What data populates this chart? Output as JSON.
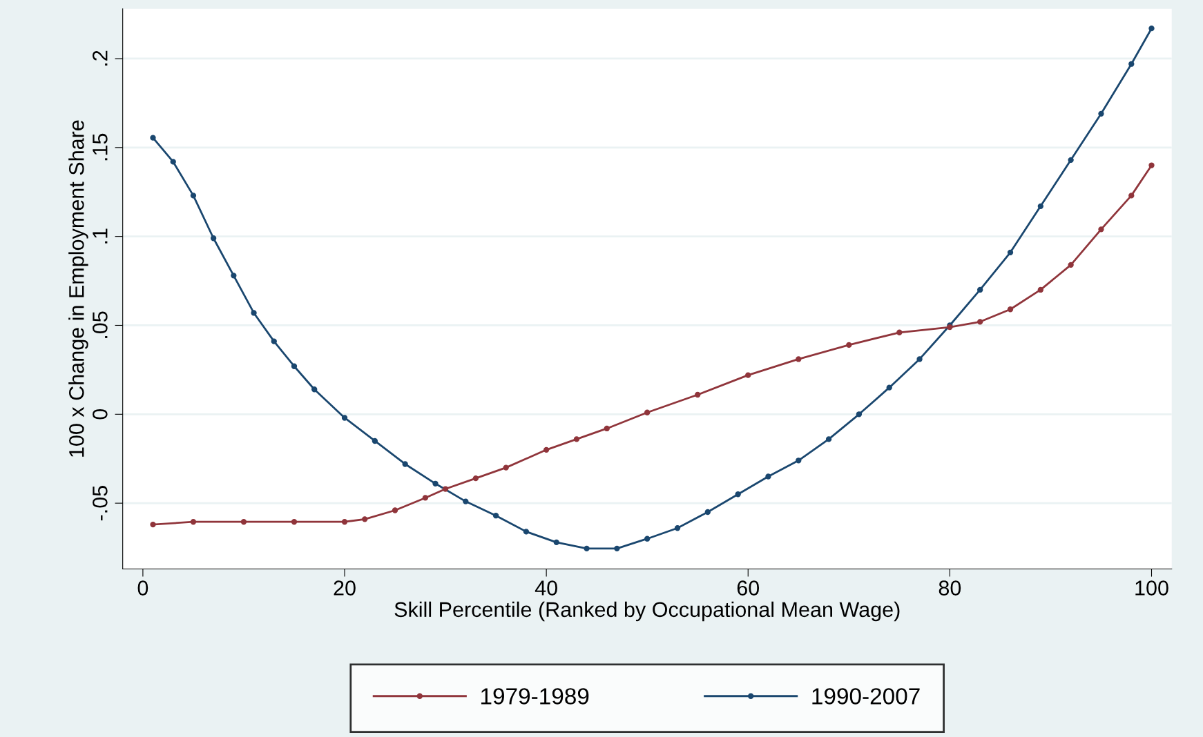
{
  "chart_data": {
    "type": "line",
    "xlabel": "Skill Percentile (Ranked by Occupational Mean Wage)",
    "ylabel": "100 x Change in Employment Share",
    "xlim": [
      -2,
      102
    ],
    "ylim": [
      -0.087,
      0.228
    ],
    "xticks": [
      0,
      20,
      40,
      60,
      80,
      100
    ],
    "yticks": [
      {
        "value": -0.05,
        "label": "-.05"
      },
      0,
      {
        "value": 0.05,
        "label": ".05"
      },
      {
        "value": 0.1,
        "label": ".1"
      },
      {
        "value": 0.15,
        "label": ".15"
      },
      {
        "value": 0.2,
        "label": ".2"
      }
    ],
    "grid": "y",
    "legend": "bottom",
    "marker": "circle",
    "line_style": "solid",
    "series": [
      {
        "name": "1979-1989",
        "color": "#90353b",
        "x": [
          1,
          5,
          10,
          15,
          20,
          22,
          25,
          28,
          30,
          33,
          36,
          40,
          43,
          46,
          50,
          55,
          60,
          65,
          70,
          75,
          80,
          83,
          86,
          89,
          92,
          95,
          98,
          100
        ],
        "values": [
          -0.062,
          -0.0605,
          -0.0605,
          -0.0605,
          -0.0605,
          -0.059,
          -0.054,
          -0.047,
          -0.042,
          -0.036,
          -0.03,
          -0.02,
          -0.014,
          -0.008,
          0.001,
          0.011,
          0.022,
          0.031,
          0.039,
          0.046,
          0.049,
          0.052,
          0.059,
          0.07,
          0.084,
          0.104,
          0.123,
          0.14
        ]
      },
      {
        "name": "1990-2007",
        "color": "#1a476f",
        "x": [
          1,
          3,
          5,
          7,
          9,
          11,
          13,
          15,
          17,
          20,
          23,
          26,
          29,
          32,
          35,
          38,
          41,
          44,
          47,
          50,
          53,
          56,
          59,
          62,
          65,
          68,
          71,
          74,
          77,
          80,
          83,
          86,
          89,
          92,
          95,
          98,
          100
        ],
        "values": [
          0.1555,
          0.142,
          0.123,
          0.099,
          0.078,
          0.057,
          0.041,
          0.027,
          0.014,
          -0.002,
          -0.015,
          -0.028,
          -0.039,
          -0.049,
          -0.057,
          -0.066,
          -0.072,
          -0.0755,
          -0.0755,
          -0.07,
          -0.064,
          -0.055,
          -0.045,
          -0.035,
          -0.026,
          -0.014,
          0.0,
          0.015,
          0.031,
          0.05,
          0.07,
          0.091,
          0.117,
          0.143,
          0.169,
          0.197,
          0.217
        ]
      }
    ]
  }
}
